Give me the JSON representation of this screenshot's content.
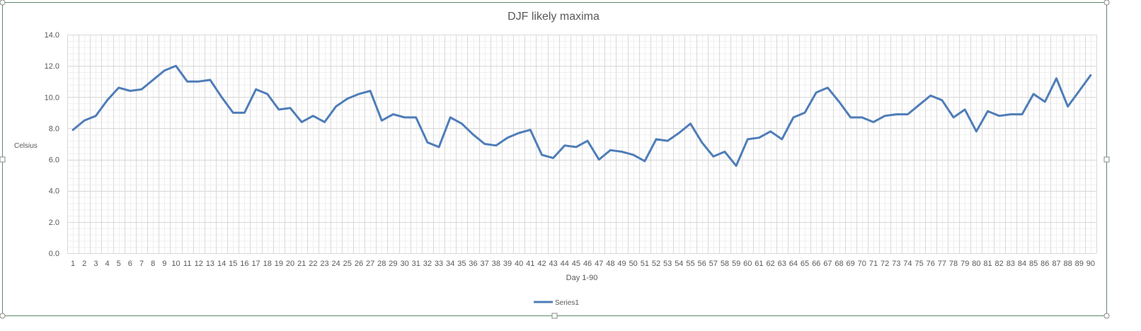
{
  "chart_data": {
    "type": "line",
    "title": "DJF likely maxima",
    "xlabel": "Day 1-90",
    "ylabel": "Celsius",
    "ylim": [
      0,
      14
    ],
    "y_major_step": 2,
    "y_tick_labels": [
      "0.0",
      "2.0",
      "4.0",
      "6.0",
      "8.0",
      "10.0",
      "12.0",
      "14.0"
    ],
    "grid": true,
    "legend_position": "bottom",
    "x": [
      1,
      2,
      3,
      4,
      5,
      6,
      7,
      8,
      9,
      10,
      11,
      12,
      13,
      14,
      15,
      16,
      17,
      18,
      19,
      20,
      21,
      22,
      23,
      24,
      25,
      26,
      27,
      28,
      29,
      30,
      31,
      32,
      33,
      34,
      35,
      36,
      37,
      38,
      39,
      40,
      41,
      42,
      43,
      44,
      45,
      46,
      47,
      48,
      49,
      50,
      51,
      52,
      53,
      54,
      55,
      56,
      57,
      58,
      59,
      60,
      61,
      62,
      63,
      64,
      65,
      66,
      67,
      68,
      69,
      70,
      71,
      72,
      73,
      74,
      75,
      76,
      77,
      78,
      79,
      80,
      81,
      82,
      83,
      84,
      85,
      86,
      87,
      88,
      89,
      90
    ],
    "series": [
      {
        "name": "Series1",
        "color": "#4F7DB8",
        "values": [
          7.9,
          8.5,
          8.8,
          9.8,
          10.6,
          10.4,
          10.5,
          11.1,
          11.7,
          12.0,
          11.0,
          11.0,
          11.1,
          10.0,
          9.0,
          9.0,
          10.5,
          10.2,
          9.2,
          9.3,
          8.4,
          8.8,
          8.4,
          9.4,
          9.9,
          10.2,
          10.4,
          8.5,
          8.9,
          8.7,
          8.7,
          7.1,
          6.8,
          8.7,
          8.3,
          7.6,
          7.0,
          6.9,
          7.4,
          7.7,
          7.9,
          6.3,
          6.1,
          6.9,
          6.8,
          7.2,
          6.0,
          6.6,
          6.5,
          6.3,
          5.9,
          7.3,
          7.2,
          7.7,
          8.3,
          7.1,
          6.2,
          6.5,
          5.6,
          7.3,
          7.4,
          7.8,
          7.3,
          8.7,
          9.0,
          10.3,
          10.6,
          9.7,
          8.7,
          8.7,
          8.4,
          8.8,
          8.9,
          8.9,
          9.5,
          10.1,
          9.8,
          8.7,
          9.2,
          7.8,
          9.1,
          8.8,
          8.9,
          8.9,
          10.2,
          9.7,
          11.2,
          9.4,
          10.4,
          11.4
        ]
      }
    ]
  }
}
